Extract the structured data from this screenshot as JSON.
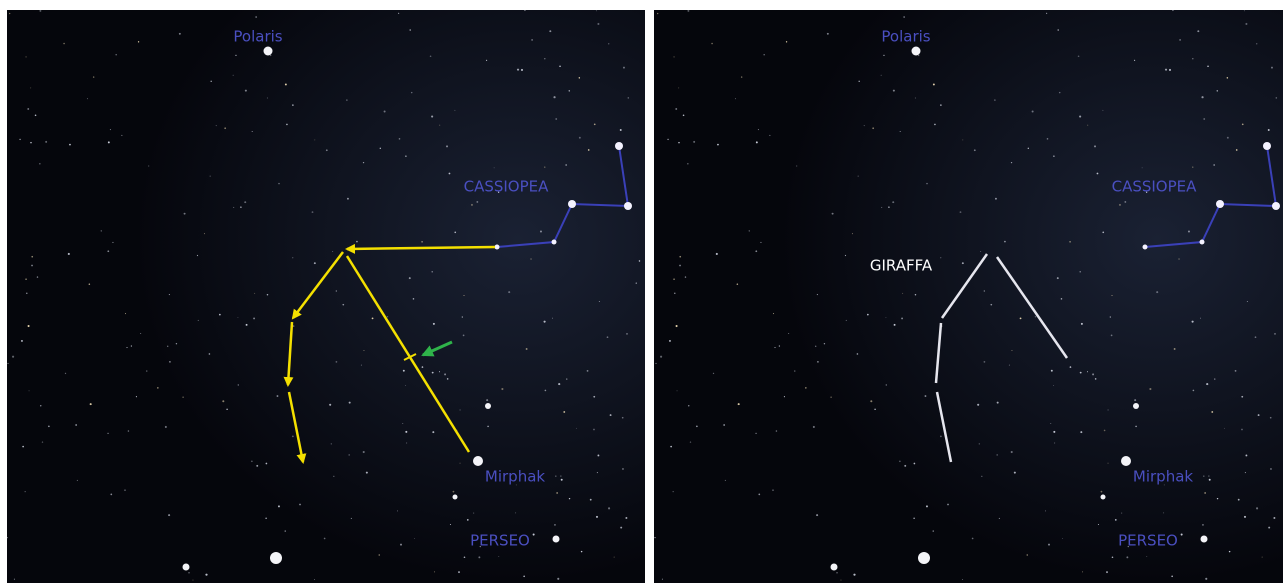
{
  "panels": [
    {
      "labels": {
        "polaris": "Polaris",
        "cassiopea": "CASSIOPEA",
        "mirphak": "Mirphak",
        "perseo": "PERSEO"
      }
    },
    {
      "labels": {
        "polaris": "Polaris",
        "cassiopea": "CASSIOPEA",
        "giraffa": "GIRAFFA",
        "mirphak": "Mirphak",
        "perseo": "PERSEO"
      }
    }
  ]
}
